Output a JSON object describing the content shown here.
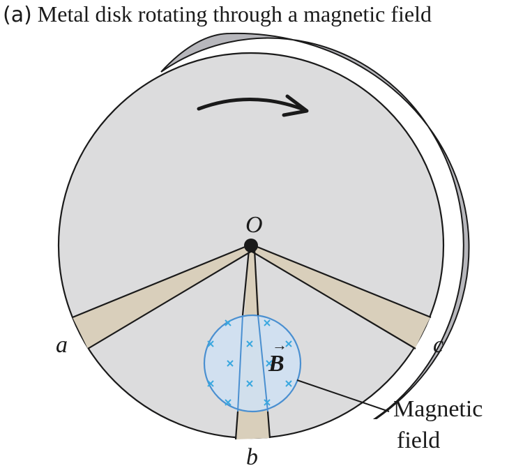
{
  "title": {
    "part": "(a)",
    "text": "Metal disk rotating through a magnetic field"
  },
  "labels": {
    "center": "O",
    "point_a": "a",
    "point_b": "b",
    "point_c": "c",
    "field_symbol": "B",
    "vector_arrow": "→",
    "callout_line1": "Magnetic",
    "callout_line2": "field"
  },
  "colors": {
    "disk_face": "#dcdcdd",
    "disk_edge": "#b7b7bc",
    "wedge": "#d9cfbb",
    "field_fill": "#cfe0f2",
    "field_stroke": "#4a8fd0",
    "x_marks": "#3aa8df",
    "ink": "#1a1a1a"
  },
  "icons": {
    "rotation": "clockwise-arrow-icon",
    "field_marks": "into-page-x-icon"
  }
}
